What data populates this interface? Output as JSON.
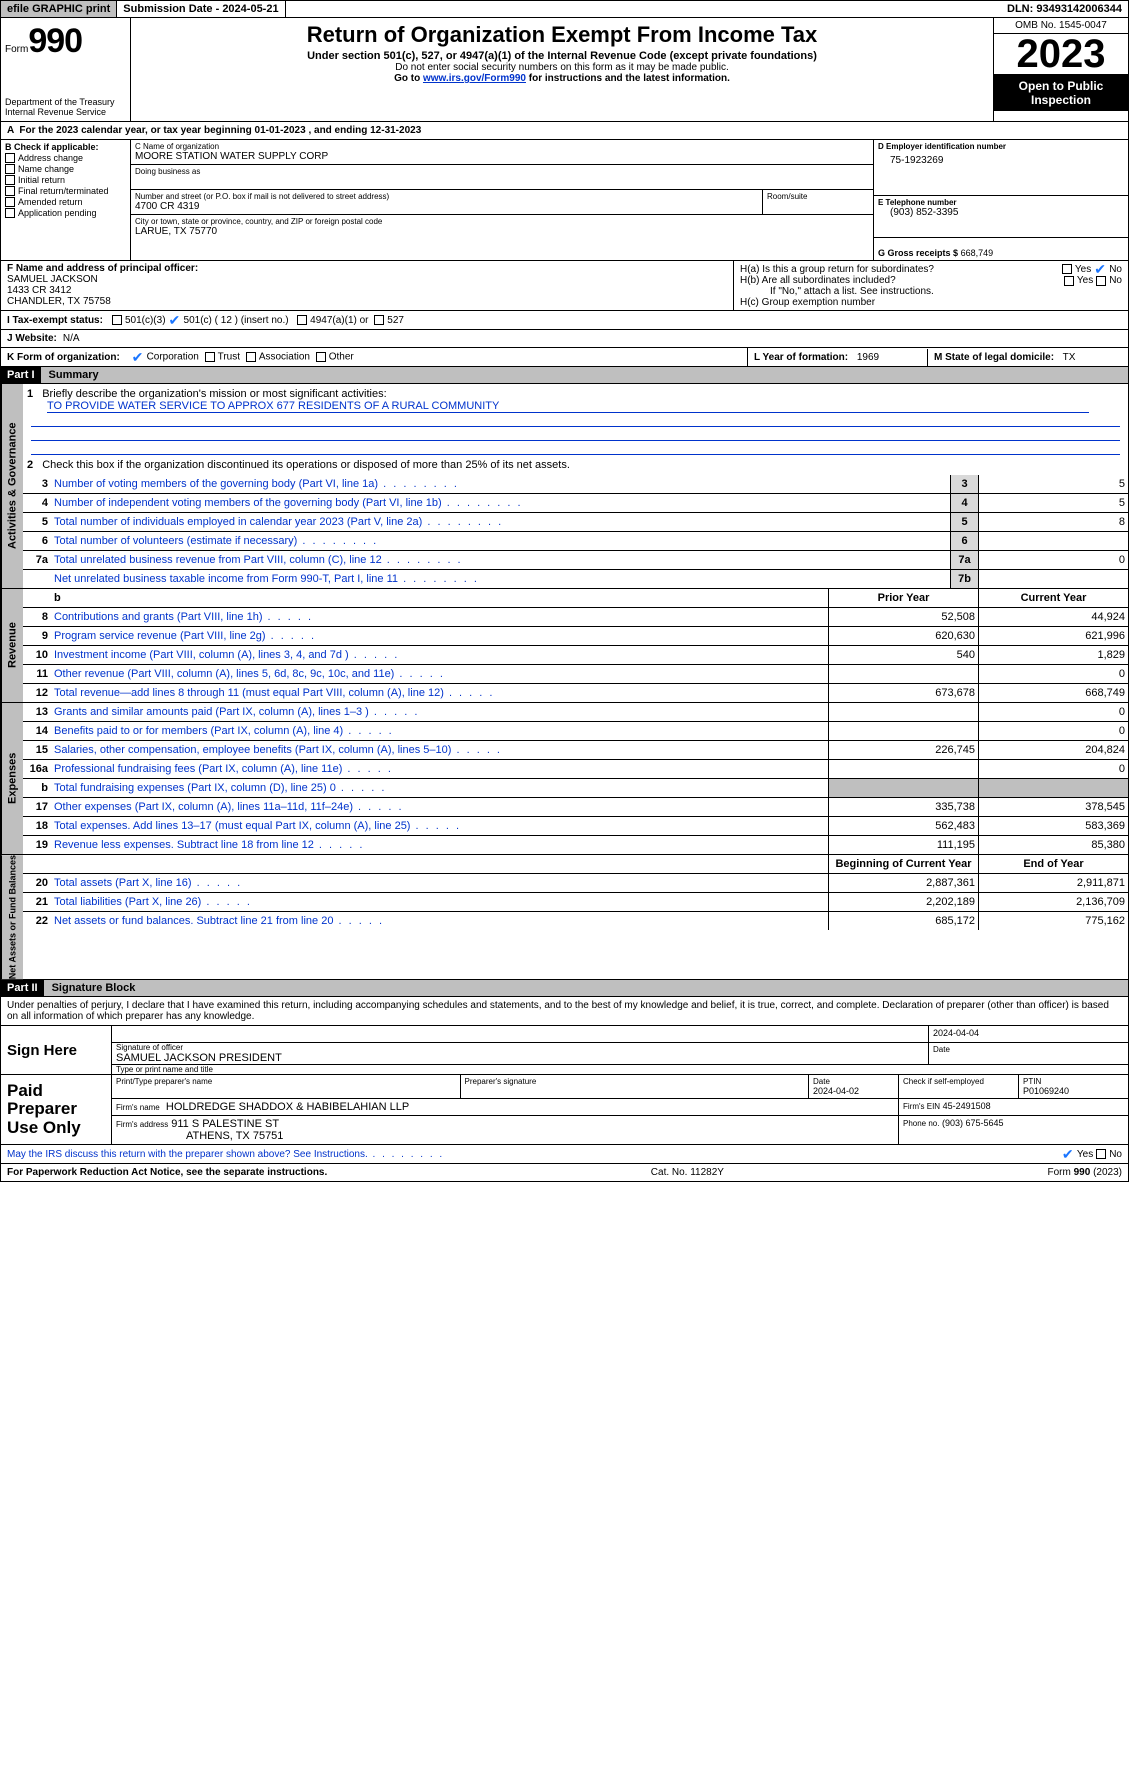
{
  "topbar": {
    "efile": "efile GRAPHIC print",
    "submission_label": "Submission Date - 2024-05-21",
    "dln": "DLN: 93493142006344"
  },
  "header": {
    "form_word": "Form",
    "form_num": "990",
    "dept": "Department of the Treasury\nInternal Revenue Service",
    "title": "Return of Organization Exempt From Income Tax",
    "subtitle": "Under section 501(c), 527, or 4947(a)(1) of the Internal Revenue Code (except private foundations)",
    "ssn_note": "Do not enter social security numbers on this form as it may be made public.",
    "goto_prefix": "Go to ",
    "goto_link": "www.irs.gov/Form990",
    "goto_suffix": " for instructions and the latest information.",
    "omb": "OMB No. 1545-0047",
    "year": "2023",
    "public": "Open to Public Inspection"
  },
  "line_a": "For the 2023 calendar year, or tax year beginning 01-01-2023   , and ending 12-31-2023",
  "box_b": {
    "header": "B Check if applicable:",
    "items": [
      "Address change",
      "Name change",
      "Initial return",
      "Final return/terminated",
      "Amended return",
      "Application pending"
    ]
  },
  "box_c": {
    "name_label": "C Name of organization",
    "name": "MOORE STATION WATER SUPPLY CORP",
    "dba_label": "Doing business as",
    "addr_label": "Number and street (or P.O. box if mail is not delivered to street address)",
    "addr": "4700 CR 4319",
    "room_label": "Room/suite",
    "city_label": "City or town, state or province, country, and ZIP or foreign postal code",
    "city": "LARUE, TX  75770"
  },
  "box_d": {
    "label": "D Employer identification number",
    "value": "75-1923269"
  },
  "box_e": {
    "label": "E Telephone number",
    "value": "(903) 852-3395"
  },
  "box_g": {
    "label": "G Gross receipts $",
    "value": "668,749"
  },
  "box_f": {
    "label": "F  Name and address of principal officer:",
    "name": "SAMUEL JACKSON",
    "addr1": "1433 CR 3412",
    "addr2": "CHANDLER, TX  75758"
  },
  "box_h": {
    "a": "H(a)  Is this a group return for subordinates?",
    "b": "H(b)  Are all subordinates included?",
    "b_note": "If \"No,\" attach a list. See instructions.",
    "c": "H(c)  Group exemption number",
    "yes": "Yes",
    "no": "No"
  },
  "tax_exempt": {
    "label": "I   Tax-exempt status:",
    "c3": "501(c)(3)",
    "c12": "501(c) ( 12 ) (insert no.)",
    "a1": "4947(a)(1) or",
    "s527": "527"
  },
  "website": {
    "label": "J   Website:",
    "value": "N/A"
  },
  "form_org": {
    "label": "K Form of organization:",
    "corp": "Corporation",
    "trust": "Trust",
    "assoc": "Association",
    "other": "Other"
  },
  "box_l": {
    "label": "L Year of formation:",
    "value": "1969"
  },
  "box_m": {
    "label": "M State of legal domicile:",
    "value": "TX"
  },
  "part1": {
    "hdr": "Part I",
    "title": "Summary"
  },
  "summary": {
    "side_gov": "Activities & Governance",
    "side_rev": "Revenue",
    "side_exp": "Expenses",
    "side_net": "Net Assets or Fund Balances",
    "l1_label": "Briefly describe the organization's mission or most significant activities:",
    "l1_value": "TO PROVIDE WATER SERVICE TO APPROX 677 RESIDENTS OF A RURAL COMMUNITY",
    "l2": "Check this box          if the organization discontinued its operations or disposed of more than 25% of its net assets.",
    "lines_gov": [
      {
        "n": "3",
        "d": "Number of voting members of the governing body (Part VI, line 1a)",
        "b": "3",
        "v": "5"
      },
      {
        "n": "4",
        "d": "Number of independent voting members of the governing body (Part VI, line 1b)",
        "b": "4",
        "v": "5"
      },
      {
        "n": "5",
        "d": "Total number of individuals employed in calendar year 2023 (Part V, line 2a)",
        "b": "5",
        "v": "8"
      },
      {
        "n": "6",
        "d": "Total number of volunteers (estimate if necessary)",
        "b": "6",
        "v": ""
      },
      {
        "n": "7a",
        "d": "Total unrelated business revenue from Part VIII, column (C), line 12",
        "b": "7a",
        "v": "0"
      },
      {
        "n": "",
        "d": "Net unrelated business taxable income from Form 990-T, Part I, line 11",
        "b": "7b",
        "v": ""
      }
    ],
    "col_prior": "Prior Year",
    "col_curr": "Current Year",
    "lines_rev": [
      {
        "n": "8",
        "d": "Contributions and grants (Part VIII, line 1h)",
        "p": "52,508",
        "c": "44,924"
      },
      {
        "n": "9",
        "d": "Program service revenue (Part VIII, line 2g)",
        "p": "620,630",
        "c": "621,996"
      },
      {
        "n": "10",
        "d": "Investment income (Part VIII, column (A), lines 3, 4, and 7d )",
        "p": "540",
        "c": "1,829"
      },
      {
        "n": "11",
        "d": "Other revenue (Part VIII, column (A), lines 5, 6d, 8c, 9c, 10c, and 11e)",
        "p": "",
        "c": "0"
      },
      {
        "n": "12",
        "d": "Total revenue—add lines 8 through 11 (must equal Part VIII, column (A), line 12)",
        "p": "673,678",
        "c": "668,749"
      }
    ],
    "lines_exp": [
      {
        "n": "13",
        "d": "Grants and similar amounts paid (Part IX, column (A), lines 1–3 )",
        "p": "",
        "c": "0"
      },
      {
        "n": "14",
        "d": "Benefits paid to or for members (Part IX, column (A), line 4)",
        "p": "",
        "c": "0"
      },
      {
        "n": "15",
        "d": "Salaries, other compensation, employee benefits (Part IX, column (A), lines 5–10)",
        "p": "226,745",
        "c": "204,824"
      },
      {
        "n": "16a",
        "d": "Professional fundraising fees (Part IX, column (A), line 11e)",
        "p": "",
        "c": "0"
      },
      {
        "n": "b",
        "d": "Total fundraising expenses (Part IX, column (D), line 25) 0",
        "p": "GREY",
        "c": "GREY"
      },
      {
        "n": "17",
        "d": "Other expenses (Part IX, column (A), lines 11a–11d, 11f–24e)",
        "p": "335,738",
        "c": "378,545"
      },
      {
        "n": "18",
        "d": "Total expenses. Add lines 13–17 (must equal Part IX, column (A), line 25)",
        "p": "562,483",
        "c": "583,369"
      },
      {
        "n": "19",
        "d": "Revenue less expenses. Subtract line 18 from line 12",
        "p": "111,195",
        "c": "85,380"
      }
    ],
    "col_beg": "Beginning of Current Year",
    "col_end": "End of Year",
    "lines_net": [
      {
        "n": "20",
        "d": "Total assets (Part X, line 16)",
        "p": "2,887,361",
        "c": "2,911,871"
      },
      {
        "n": "21",
        "d": "Total liabilities (Part X, line 26)",
        "p": "2,202,189",
        "c": "2,136,709"
      },
      {
        "n": "22",
        "d": "Net assets or fund balances. Subtract line 21 from line 20",
        "p": "685,172",
        "c": "775,162"
      }
    ]
  },
  "part2": {
    "hdr": "Part II",
    "title": "Signature Block"
  },
  "perjury": "Under penalties of perjury, I declare that I have examined this return, including accompanying schedules and statements, and to the best of my knowledge and belief, it is true, correct, and complete. Declaration of preparer (other than officer) is based on all information of which preparer has any knowledge.",
  "sign": {
    "here": "Sign Here",
    "sig_officer": "Signature of officer",
    "officer_name": "SAMUEL JACKSON PRESIDENT",
    "date_lab": "Date",
    "date_val": "2024-04-04",
    "type_name": "Type or print name and title"
  },
  "paid": {
    "label": "Paid Preparer Use Only",
    "pname_lab": "Print/Type preparer's name",
    "psig_lab": "Preparer's signature",
    "pdate_lab": "Date",
    "pdate_val": "2024-04-02",
    "self_lab": "Check         if self-employed",
    "ptin_lab": "PTIN",
    "ptin_val": "P01069240",
    "firm_name_lab": "Firm's name",
    "firm_name": "HOLDREDGE SHADDOX & HABIBELAHIAN LLP",
    "firm_ein_lab": "Firm's EIN",
    "firm_ein": "45-2491508",
    "firm_addr_lab": "Firm's address",
    "firm_addr1": "911 S PALESTINE ST",
    "firm_addr2": "ATHENS, TX  75751",
    "phone_lab": "Phone no.",
    "phone": "(903) 675-5645"
  },
  "discuss": {
    "text": "May the IRS discuss this return with the preparer shown above? See Instructions.",
    "yes": "Yes",
    "no": "No"
  },
  "footer": {
    "pra": "For Paperwork Reduction Act Notice, see the separate instructions.",
    "cat": "Cat. No. 11282Y",
    "form": "Form 990 (2023)"
  }
}
